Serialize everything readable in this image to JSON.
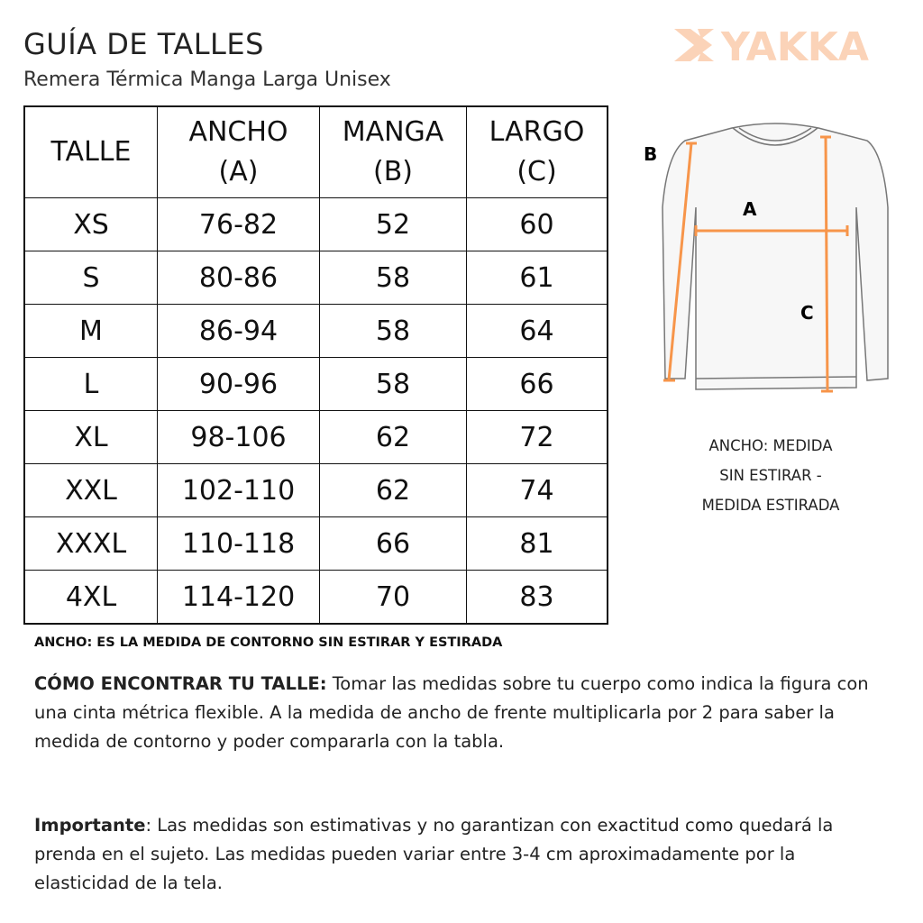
{
  "title": "GUÍA DE TALLES",
  "subtitle": "Remera Térmica Manga Larga Unisex",
  "logo": {
    "text": "YAKKA",
    "color": "#fbd3b8"
  },
  "table": {
    "headers": [
      [
        "TALLE",
        ""
      ],
      [
        "ANCHO",
        "(A)"
      ],
      [
        "MANGA",
        "(B)"
      ],
      [
        "LARGO",
        "(C)"
      ]
    ],
    "rows": [
      [
        "XS",
        "76-82",
        "52",
        "60"
      ],
      [
        "S",
        "80-86",
        "58",
        "61"
      ],
      [
        "M",
        "86-94",
        "58",
        "64"
      ],
      [
        "L",
        "90-96",
        "58",
        "66"
      ],
      [
        "XL",
        "98-106",
        "62",
        "72"
      ],
      [
        "XXL",
        "102-110",
        "62",
        "74"
      ],
      [
        "XXXL",
        "110-118",
        "66",
        "81"
      ],
      [
        "4XL",
        "114-120",
        "70",
        "83"
      ]
    ]
  },
  "diagram": {
    "labels": {
      "a": "A",
      "b": "B",
      "c": "C"
    },
    "accent": "#f7954a"
  },
  "ancho_desc": [
    "ANCHO:   MEDIDA",
    "SIN ESTIRAR -",
    "MEDIDA ESTIRADA"
  ],
  "note": "ANCHO: ES LA  MEDIDA DE CONTORNO SIN ESTIRAR Y ESTIRADA",
  "how": {
    "bold": "CÓMO ENCONTRAR TU TALLE:",
    "text": " Tomar las medidas sobre tu cuerpo como indica la figura con una cinta métrica flexible. A la medida de ancho de frente multiplicarla por 2 para saber la medida de contorno y  poder compararla con la tabla."
  },
  "important": {
    "bold": "Importante",
    "text": ": Las medidas son estimativas y no garantizan con exactitud como quedará la prenda en el sujeto. Las medidas pueden variar entre 3-4 cm aproximadamente por la elasticidad de la tela."
  }
}
